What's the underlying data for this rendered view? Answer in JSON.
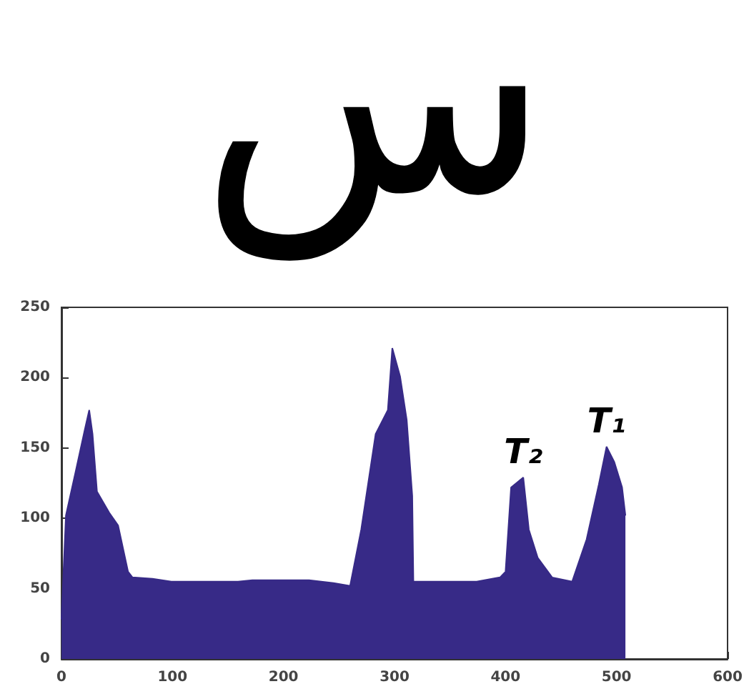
{
  "chart_data": {
    "type": "area",
    "title": "س",
    "x": [
      0,
      4,
      13,
      21,
      25,
      28,
      32,
      43,
      51,
      60,
      64,
      82,
      99,
      116,
      159,
      172,
      202,
      223,
      245,
      260,
      270,
      283,
      294,
      298,
      305,
      311,
      316,
      317,
      331,
      374,
      395,
      400,
      405,
      416,
      421,
      429,
      442,
      460,
      473,
      484,
      491,
      498,
      505,
      508
    ],
    "values": [
      28,
      102,
      134,
      163,
      177,
      160,
      119,
      104,
      95,
      62,
      58,
      57,
      55,
      55,
      55,
      56,
      56,
      56,
      54,
      52,
      92,
      160,
      177,
      221,
      201,
      170,
      116,
      55,
      55,
      55,
      58,
      62,
      122,
      129,
      92,
      72,
      58,
      55,
      85,
      124,
      151,
      140,
      122,
      102
    ],
    "color": "#372a87",
    "xlim": [
      0,
      600
    ],
    "xticks": [
      0,
      100,
      200,
      300,
      400,
      500,
      600
    ],
    "ylim": [
      0,
      250
    ],
    "yticks": [
      0,
      50,
      100,
      150,
      200,
      250
    ],
    "annotations": [
      {
        "text": "T₁",
        "x": 491,
        "y": 151
      },
      {
        "text": "T₂",
        "x": 416,
        "y": 129
      }
    ]
  }
}
